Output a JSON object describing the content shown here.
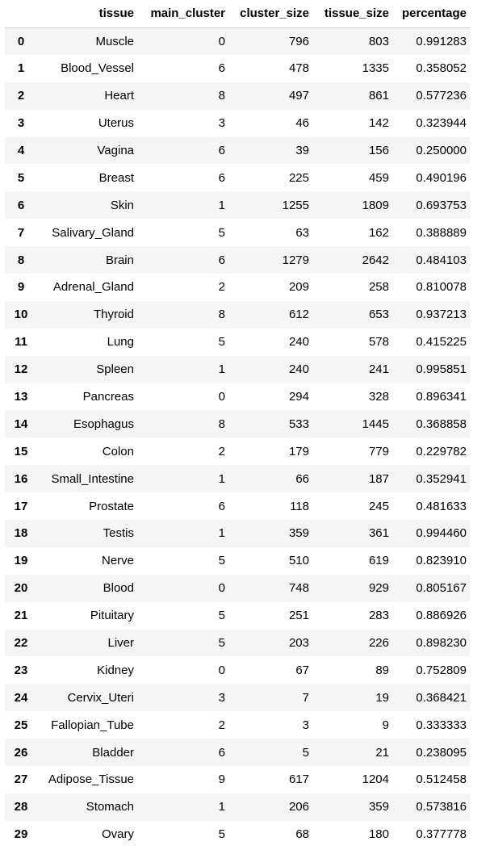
{
  "table": {
    "columns": [
      "",
      "tissue",
      "main_cluster",
      "cluster_size",
      "tissue_size",
      "percentage"
    ],
    "rows": [
      [
        "0",
        "Muscle",
        "0",
        "796",
        "803",
        "0.991283"
      ],
      [
        "1",
        "Blood_Vessel",
        "6",
        "478",
        "1335",
        "0.358052"
      ],
      [
        "2",
        "Heart",
        "8",
        "497",
        "861",
        "0.577236"
      ],
      [
        "3",
        "Uterus",
        "3",
        "46",
        "142",
        "0.323944"
      ],
      [
        "4",
        "Vagina",
        "6",
        "39",
        "156",
        "0.250000"
      ],
      [
        "5",
        "Breast",
        "6",
        "225",
        "459",
        "0.490196"
      ],
      [
        "6",
        "Skin",
        "1",
        "1255",
        "1809",
        "0.693753"
      ],
      [
        "7",
        "Salivary_Gland",
        "5",
        "63",
        "162",
        "0.388889"
      ],
      [
        "8",
        "Brain",
        "6",
        "1279",
        "2642",
        "0.484103"
      ],
      [
        "9",
        "Adrenal_Gland",
        "2",
        "209",
        "258",
        "0.810078"
      ],
      [
        "10",
        "Thyroid",
        "8",
        "612",
        "653",
        "0.937213"
      ],
      [
        "11",
        "Lung",
        "5",
        "240",
        "578",
        "0.415225"
      ],
      [
        "12",
        "Spleen",
        "1",
        "240",
        "241",
        "0.995851"
      ],
      [
        "13",
        "Pancreas",
        "0",
        "294",
        "328",
        "0.896341"
      ],
      [
        "14",
        "Esophagus",
        "8",
        "533",
        "1445",
        "0.368858"
      ],
      [
        "15",
        "Colon",
        "2",
        "179",
        "779",
        "0.229782"
      ],
      [
        "16",
        "Small_Intestine",
        "1",
        "66",
        "187",
        "0.352941"
      ],
      [
        "17",
        "Prostate",
        "6",
        "118",
        "245",
        "0.481633"
      ],
      [
        "18",
        "Testis",
        "1",
        "359",
        "361",
        "0.994460"
      ],
      [
        "19",
        "Nerve",
        "5",
        "510",
        "619",
        "0.823910"
      ],
      [
        "20",
        "Blood",
        "0",
        "748",
        "929",
        "0.805167"
      ],
      [
        "21",
        "Pituitary",
        "5",
        "251",
        "283",
        "0.886926"
      ],
      [
        "22",
        "Liver",
        "5",
        "203",
        "226",
        "0.898230"
      ],
      [
        "23",
        "Kidney",
        "0",
        "67",
        "89",
        "0.752809"
      ],
      [
        "24",
        "Cervix_Uteri",
        "3",
        "7",
        "19",
        "0.368421"
      ],
      [
        "25",
        "Fallopian_Tube",
        "2",
        "3",
        "9",
        "0.333333"
      ],
      [
        "26",
        "Bladder",
        "6",
        "5",
        "21",
        "0.238095"
      ],
      [
        "27",
        "Adipose_Tissue",
        "9",
        "617",
        "1204",
        "0.512458"
      ],
      [
        "28",
        "Stomach",
        "1",
        "206",
        "359",
        "0.573816"
      ],
      [
        "29",
        "Ovary",
        "5",
        "68",
        "180",
        "0.377778"
      ]
    ]
  }
}
